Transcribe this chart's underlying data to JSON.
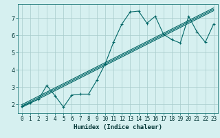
{
  "xlabel": "Humidex (Indice chaleur)",
  "bg_color": "#d6f0f0",
  "grid_color": "#a8cccc",
  "line_color": "#006666",
  "x_data": [
    0,
    1,
    2,
    3,
    4,
    5,
    6,
    7,
    8,
    9,
    10,
    11,
    12,
    13,
    14,
    15,
    16,
    17,
    18,
    19,
    20,
    21,
    22,
    23
  ],
  "y_data": [
    1.9,
    2.1,
    2.3,
    3.1,
    2.5,
    1.85,
    2.55,
    2.6,
    2.6,
    3.4,
    4.35,
    5.6,
    6.65,
    7.35,
    7.4,
    6.7,
    7.1,
    6.05,
    5.75,
    5.55,
    7.1,
    6.2,
    5.6,
    6.65
  ],
  "xlim": [
    -0.5,
    23.5
  ],
  "ylim": [
    1.5,
    7.8
  ],
  "xticks": [
    0,
    1,
    2,
    3,
    4,
    5,
    6,
    7,
    8,
    9,
    10,
    11,
    12,
    13,
    14,
    15,
    16,
    17,
    18,
    19,
    20,
    21,
    22,
    23
  ],
  "yticks": [
    2,
    3,
    4,
    5,
    6,
    7
  ],
  "tick_fontsize": 5.5,
  "xlabel_fontsize": 6.5,
  "marker": "+"
}
